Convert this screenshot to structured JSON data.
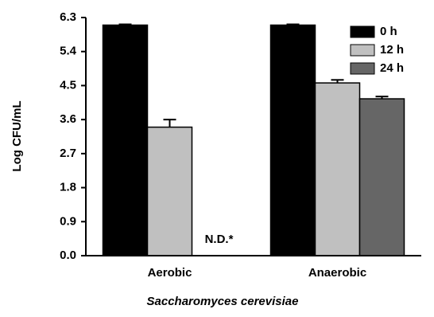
{
  "chart_data": {
    "type": "bar",
    "y_label": "Log CFU/mL",
    "x_label": "Saccharomyces cerevisiae",
    "categories": [
      "Aerobic",
      "Anaerobic"
    ],
    "series": [
      {
        "name": "0 h",
        "color": "#000000",
        "values": [
          6.1,
          6.1
        ],
        "errors": [
          0.02,
          0.02
        ]
      },
      {
        "name": "12 h",
        "color": "#c0c0c0",
        "values": [
          3.4,
          4.57
        ],
        "errors": [
          0.2,
          0.08
        ]
      },
      {
        "name": "24 h",
        "color": "#666666",
        "values": [
          null,
          4.15
        ],
        "errors": [
          null,
          0.06
        ]
      }
    ],
    "annotation": "N.D.*",
    "ylim": [
      0,
      6.3
    ],
    "yticks": [
      {
        "value": 0,
        "label": "0.0"
      },
      0.9,
      1.8,
      2.7,
      3.6,
      4.5,
      5.4,
      6.3
    ],
    "legend": "top-right"
  }
}
